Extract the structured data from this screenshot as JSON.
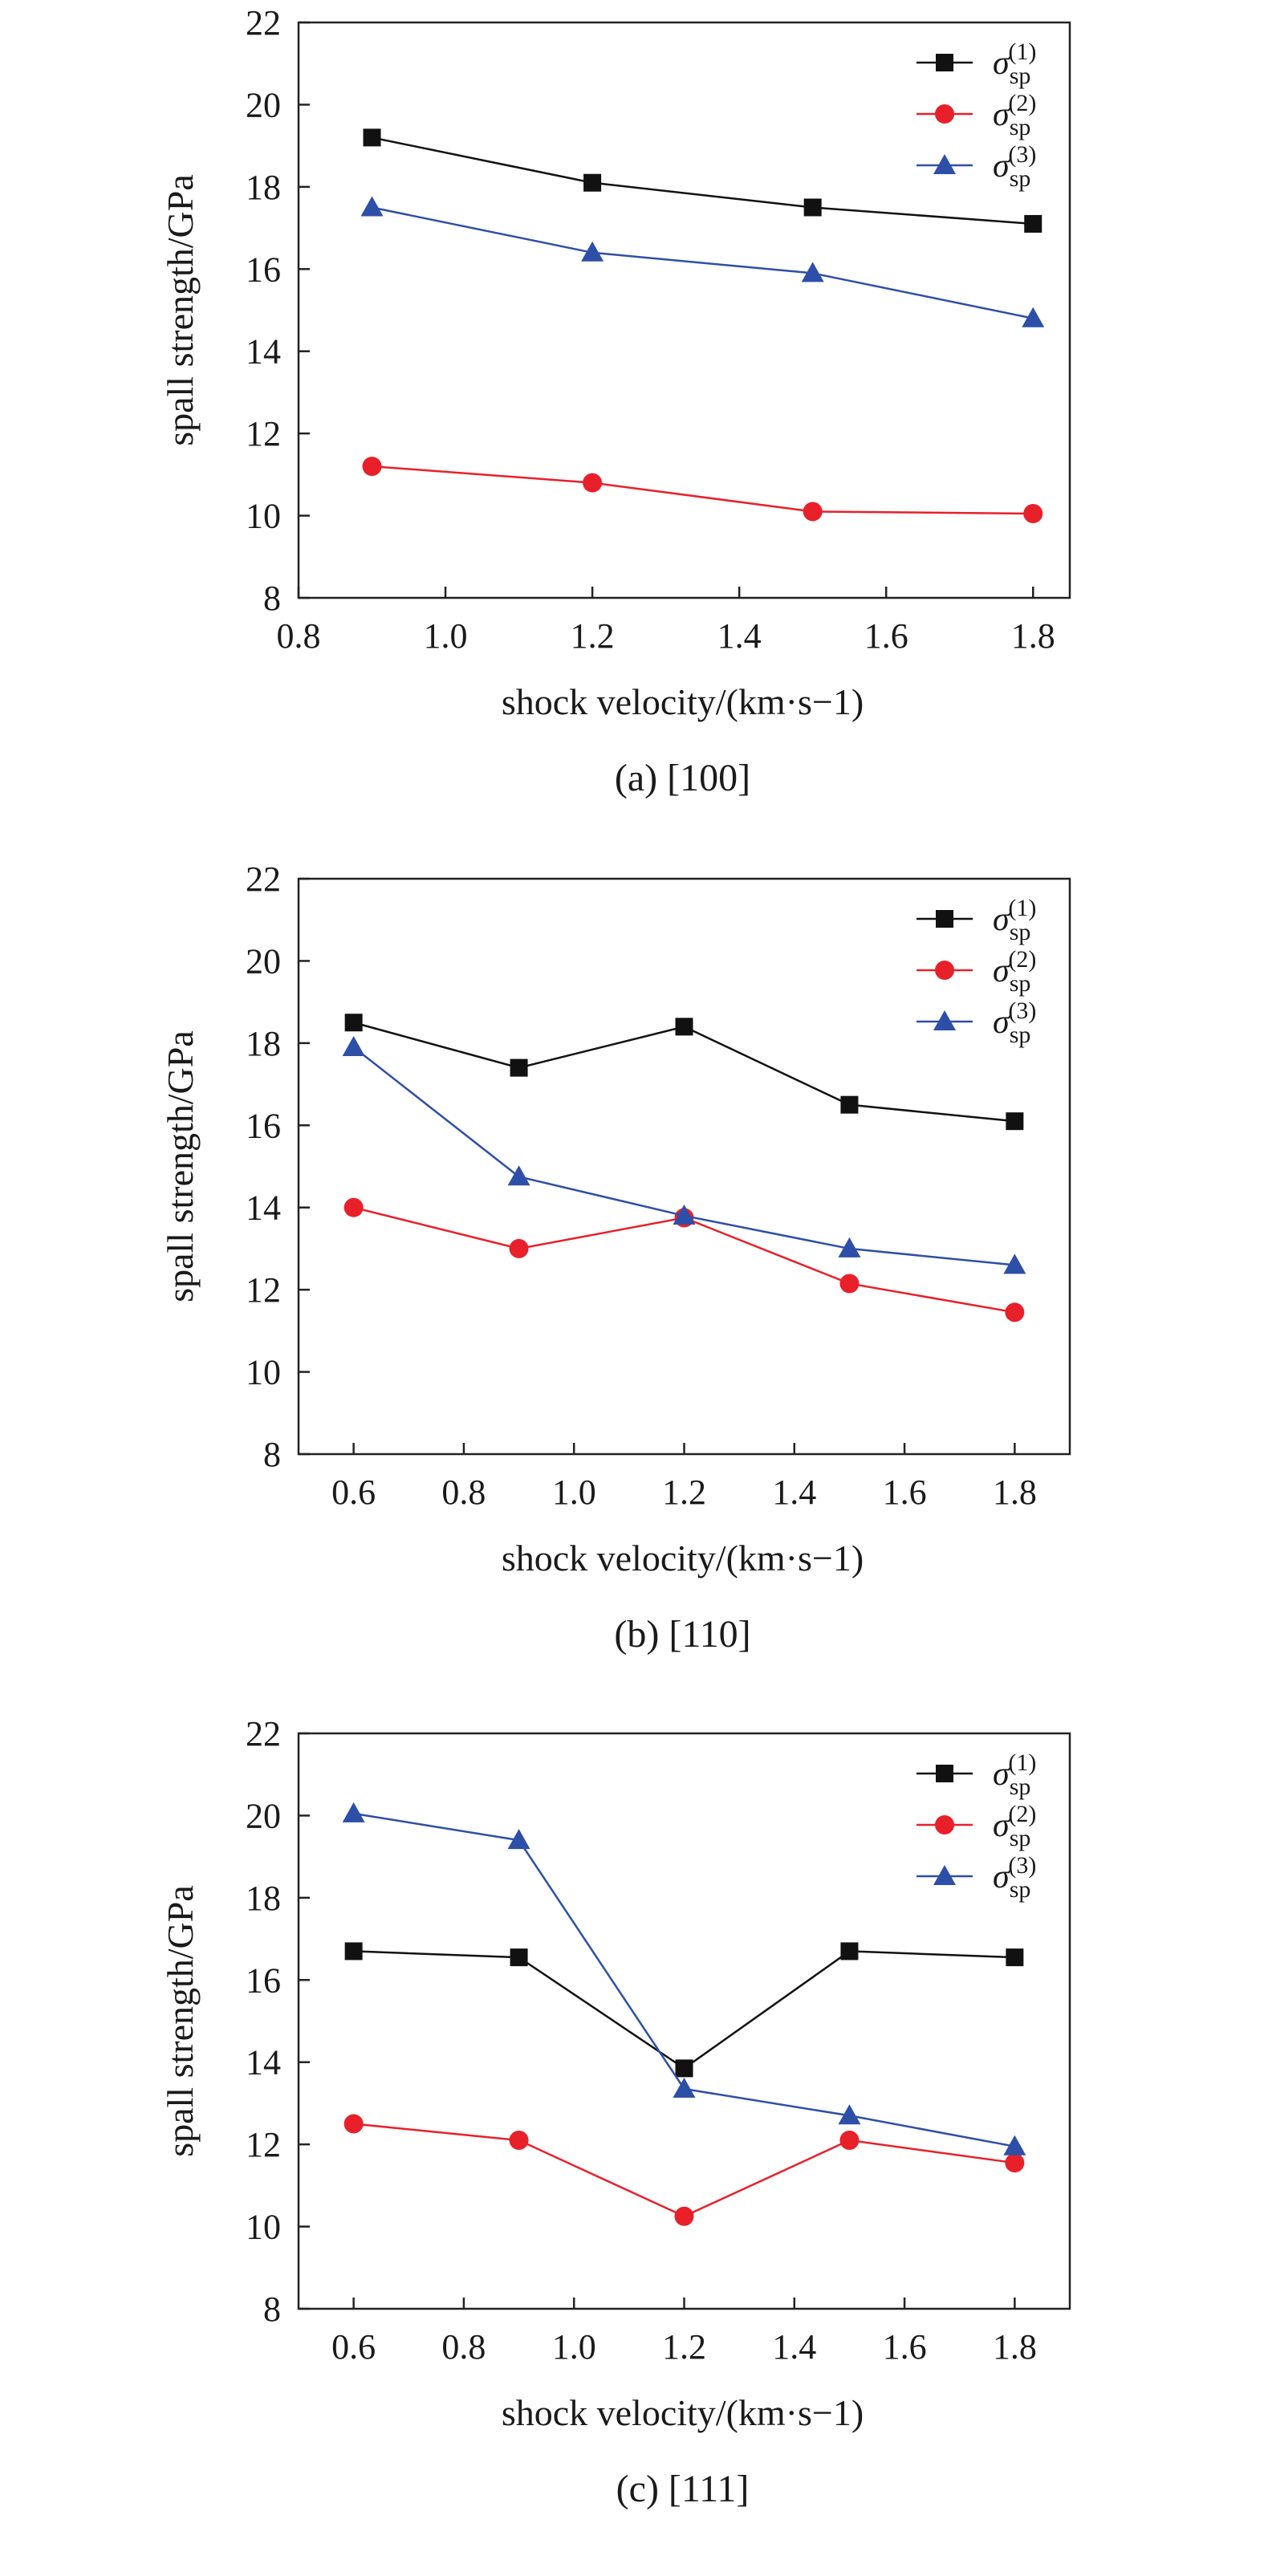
{
  "chart_data": [
    {
      "type": "line",
      "caption": "(a) [100]",
      "xlabel": "shock velocity/(km·s−1)",
      "ylabel": "spall strength/GPa",
      "xlim": [
        0.8,
        1.85
      ],
      "ylim": [
        8,
        22
      ],
      "xticks": [
        "0.8",
        "1.0",
        "1.2",
        "1.4",
        "1.6",
        "1.8"
      ],
      "yticks": [
        "8",
        "10",
        "12",
        "14",
        "16",
        "18",
        "20",
        "22"
      ],
      "legend_position": "top-right",
      "series": [
        {
          "name": "σsp(1)",
          "marker": "square",
          "color": "#111111",
          "x": [
            0.9,
            1.2,
            1.5,
            1.8
          ],
          "y": [
            19.2,
            18.1,
            17.5,
            17.1
          ]
        },
        {
          "name": "σsp(2)",
          "marker": "circle",
          "color": "#e8202a",
          "x": [
            0.9,
            1.2,
            1.5,
            1.8
          ],
          "y": [
            11.2,
            10.8,
            10.1,
            10.05
          ]
        },
        {
          "name": "σsp(3)",
          "marker": "triangle",
          "color": "#2e4fa8",
          "x": [
            0.9,
            1.2,
            1.5,
            1.8
          ],
          "y": [
            17.5,
            16.4,
            15.9,
            14.8
          ]
        }
      ]
    },
    {
      "type": "line",
      "caption": "(b) [110]",
      "xlabel": "shock velocity/(km·s−1)",
      "ylabel": "spall strength/GPa",
      "xlim": [
        0.5,
        1.9
      ],
      "ylim": [
        8,
        22
      ],
      "xticks": [
        "0.6",
        "0.8",
        "1.0",
        "1.2",
        "1.4",
        "1.6",
        "1.8"
      ],
      "yticks": [
        "8",
        "10",
        "12",
        "14",
        "16",
        "18",
        "20",
        "22"
      ],
      "legend_position": "top-right",
      "series": [
        {
          "name": "σsp(1)",
          "marker": "square",
          "color": "#111111",
          "x": [
            0.6,
            0.9,
            1.2,
            1.5,
            1.8
          ],
          "y": [
            18.5,
            17.4,
            18.4,
            16.5,
            16.1
          ]
        },
        {
          "name": "σsp(2)",
          "marker": "circle",
          "color": "#e8202a",
          "x": [
            0.6,
            0.9,
            1.2,
            1.5,
            1.8
          ],
          "y": [
            14.0,
            13.0,
            13.75,
            12.15,
            11.45
          ]
        },
        {
          "name": "σsp(3)",
          "marker": "triangle",
          "color": "#2e4fa8",
          "x": [
            0.6,
            0.9,
            1.2,
            1.5,
            1.8
          ],
          "y": [
            17.9,
            14.75,
            13.8,
            13.0,
            12.6
          ]
        }
      ]
    },
    {
      "type": "line",
      "caption": "(c) [111]",
      "xlabel": "shock velocity/(km·s−1)",
      "ylabel": "spall strength/GPa",
      "xlim": [
        0.5,
        1.9
      ],
      "ylim": [
        8,
        22
      ],
      "xticks": [
        "0.6",
        "0.8",
        "1.0",
        "1.2",
        "1.4",
        "1.6",
        "1.8"
      ],
      "yticks": [
        "8",
        "10",
        "12",
        "14",
        "16",
        "18",
        "20",
        "22"
      ],
      "legend_position": "top-right",
      "series": [
        {
          "name": "σsp(1)",
          "marker": "square",
          "color": "#111111",
          "x": [
            0.6,
            0.9,
            1.2,
            1.5,
            1.8
          ],
          "y": [
            16.7,
            16.55,
            13.85,
            16.7,
            16.55
          ]
        },
        {
          "name": "σsp(2)",
          "marker": "circle",
          "color": "#e8202a",
          "x": [
            0.6,
            0.9,
            1.2,
            1.5,
            1.8
          ],
          "y": [
            12.5,
            12.1,
            10.25,
            12.1,
            11.55
          ]
        },
        {
          "name": "σsp(3)",
          "marker": "triangle",
          "color": "#2e4fa8",
          "x": [
            0.6,
            0.9,
            1.2,
            1.5,
            1.8
          ],
          "y": [
            20.05,
            19.4,
            13.35,
            12.7,
            11.95
          ]
        }
      ]
    }
  ],
  "legend_symbol": "σ",
  "legend_subscript": "sp",
  "legend_superscripts": [
    "(1)",
    "(2)",
    "(3)"
  ]
}
